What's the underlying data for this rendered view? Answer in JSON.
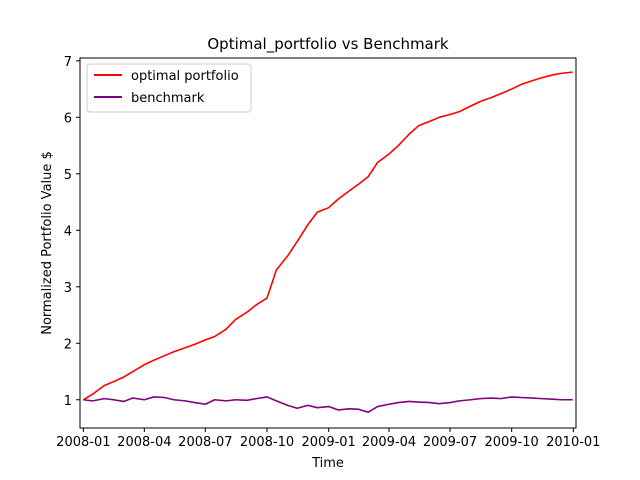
{
  "chart_data": {
    "type": "line",
    "title": "Optimal_portfolio vs Benchmark",
    "xlabel": "Time",
    "ylabel": "Normalized Portfolio Value $",
    "x_ticks": [
      "2008-01",
      "2008-04",
      "2008-07",
      "2008-10",
      "2009-01",
      "2009-04",
      "2009-07",
      "2009-10",
      "2010-01"
    ],
    "y_ticks": [
      1,
      2,
      3,
      4,
      5,
      6,
      7
    ],
    "ylim": [
      0.5,
      7.05
    ],
    "xlim": [
      "2007-12-27",
      "2010-01-05"
    ],
    "grid": false,
    "legend": "top-left",
    "x": [
      "2008-01-01",
      "2008-01-15",
      "2008-02-01",
      "2008-02-15",
      "2008-03-01",
      "2008-03-15",
      "2008-04-01",
      "2008-04-15",
      "2008-05-01",
      "2008-05-15",
      "2008-06-01",
      "2008-06-15",
      "2008-07-01",
      "2008-07-15",
      "2008-08-01",
      "2008-08-15",
      "2008-09-01",
      "2008-09-15",
      "2008-10-01",
      "2008-10-15",
      "2008-11-01",
      "2008-11-15",
      "2008-12-01",
      "2008-12-15",
      "2009-01-01",
      "2009-01-15",
      "2009-02-01",
      "2009-02-15",
      "2009-03-01",
      "2009-03-15",
      "2009-04-01",
      "2009-04-15",
      "2009-05-01",
      "2009-05-15",
      "2009-06-01",
      "2009-06-15",
      "2009-07-01",
      "2009-07-15",
      "2009-08-01",
      "2009-08-15",
      "2009-09-01",
      "2009-09-15",
      "2009-10-01",
      "2009-10-15",
      "2009-11-01",
      "2009-11-15",
      "2009-12-01",
      "2009-12-15",
      "2009-12-31"
    ],
    "series": [
      {
        "name": "optimal portfolio",
        "color": "#ff0000",
        "values": [
          1.0,
          1.1,
          1.25,
          1.32,
          1.4,
          1.5,
          1.62,
          1.7,
          1.78,
          1.85,
          1.92,
          1.98,
          2.06,
          2.12,
          2.25,
          2.42,
          2.55,
          2.68,
          2.8,
          3.3,
          3.55,
          3.8,
          4.1,
          4.32,
          4.4,
          4.55,
          4.7,
          4.82,
          4.95,
          5.2,
          5.35,
          5.5,
          5.7,
          5.85,
          5.93,
          6.0,
          6.05,
          6.1,
          6.2,
          6.28,
          6.35,
          6.42,
          6.5,
          6.58,
          6.65,
          6.7,
          6.75,
          6.78,
          6.8
        ]
      },
      {
        "name": "benchmark",
        "color": "#800080",
        "values": [
          1.0,
          0.98,
          1.02,
          1.0,
          0.97,
          1.03,
          1.0,
          1.05,
          1.04,
          1.0,
          0.98,
          0.95,
          0.92,
          1.0,
          0.98,
          1.0,
          0.99,
          1.02,
          1.05,
          0.98,
          0.9,
          0.85,
          0.9,
          0.86,
          0.88,
          0.82,
          0.84,
          0.83,
          0.78,
          0.88,
          0.92,
          0.95,
          0.97,
          0.96,
          0.95,
          0.93,
          0.95,
          0.98,
          1.0,
          1.02,
          1.03,
          1.02,
          1.05,
          1.04,
          1.03,
          1.02,
          1.01,
          1.0,
          1.0
        ]
      }
    ]
  }
}
